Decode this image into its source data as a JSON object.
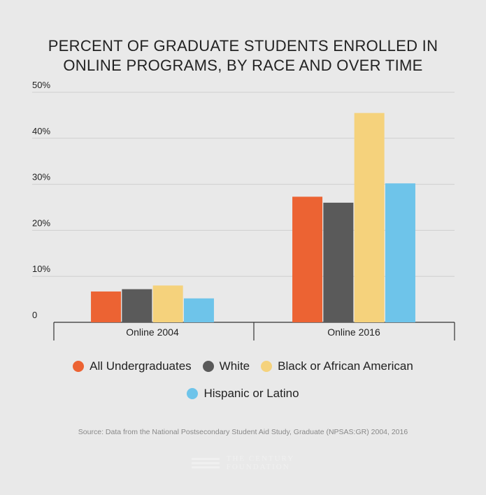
{
  "chart_data": {
    "type": "bar",
    "title_lines": [
      "PERCENT OF GRADUATE STUDENTS ENROLLED IN",
      "ONLINE PROGRAMS, BY RACE AND OVER TIME"
    ],
    "categories": [
      "Online 2004",
      "Online 2016"
    ],
    "series": [
      {
        "name": "All Undergraduates",
        "color": "#ec6333",
        "values": [
          6.7,
          27.3
        ]
      },
      {
        "name": "White",
        "color": "#5a5a5a",
        "values": [
          7.2,
          26.0
        ]
      },
      {
        "name": "Black or African American",
        "color": "#f5d27c",
        "values": [
          8.0,
          45.5
        ]
      },
      {
        "name": "Hispanic or Latino",
        "color": "#6ec4ea",
        "values": [
          5.2,
          30.2
        ]
      }
    ],
    "ylim": [
      0,
      50
    ],
    "yticks": [
      0,
      10,
      20,
      30,
      40,
      50
    ],
    "ytick_labels": [
      "0",
      "10%",
      "20%",
      "30%",
      "40%",
      "50%"
    ],
    "grid": true,
    "legend_position": "bottom",
    "source": "Source: Data from the National Postsecondary Student Aid Study, Graduate (NPSAS:GR) 2004, 2016"
  },
  "footer": {
    "logo_text": [
      "THE CENTURY",
      "FOUNDATION"
    ]
  }
}
